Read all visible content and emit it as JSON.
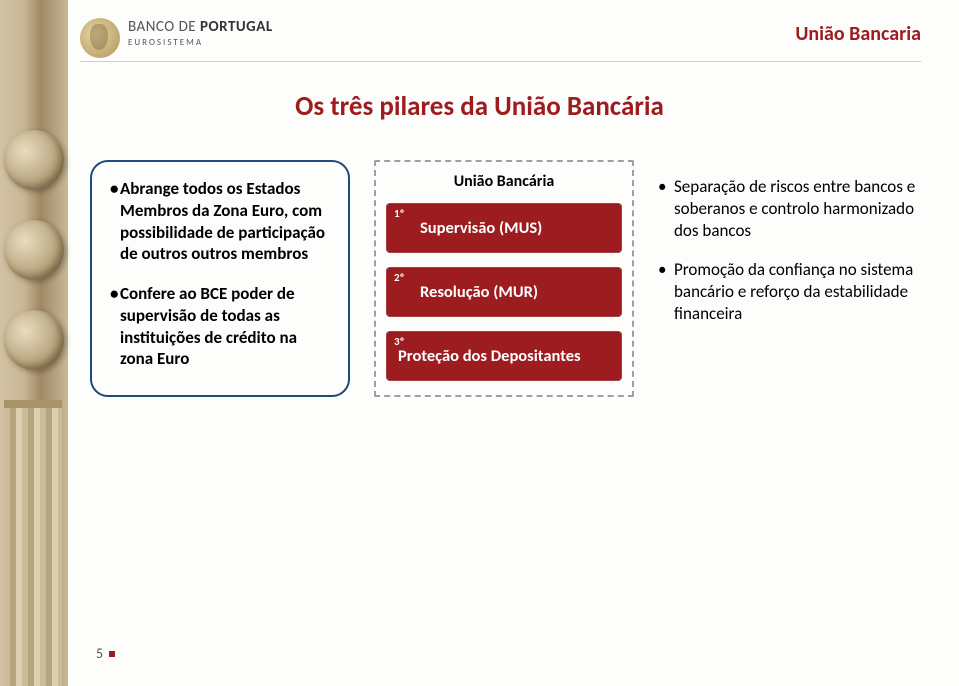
{
  "colors": {
    "brand_red": "#9d1c20",
    "box_border": "#1f4a7a",
    "dash_border": "#9aa0a6",
    "text": "#000000",
    "background": "#fdfdfb"
  },
  "typography": {
    "title_fontsize_pt": 20,
    "body_fontsize_pt": 13,
    "font_family": "Calibri"
  },
  "header": {
    "bank_thin": "BANCO ",
    "bank_de": "DE ",
    "bank_bold": "PORTUGAL",
    "subline": "EUROSISTEMA",
    "section_title": "União Bancaria"
  },
  "slide_title": "Os três pilares da União Bancária",
  "left_box": {
    "items": [
      "Abrange todos os Estados Membros da Zona Euro, com possibilidade de participação de outros outros membros",
      "Confere ao BCE poder de supervisão de todas as instituições de crédito na zona Euro"
    ]
  },
  "center": {
    "title": "União Bancária",
    "pillars": [
      {
        "num": "1º",
        "label": "Supervisão (MUS)"
      },
      {
        "num": "2º",
        "label": "Resolução (MUR)"
      },
      {
        "num": "3º",
        "label": "Proteção dos Depositantes"
      }
    ]
  },
  "right": {
    "items": [
      "Separação de riscos entre bancos e soberanos e controlo harmonizado dos bancos",
      "Promoção da confiança no sistema bancário e reforço da estabilidade financeira"
    ]
  },
  "footer": {
    "page_number": "5"
  }
}
